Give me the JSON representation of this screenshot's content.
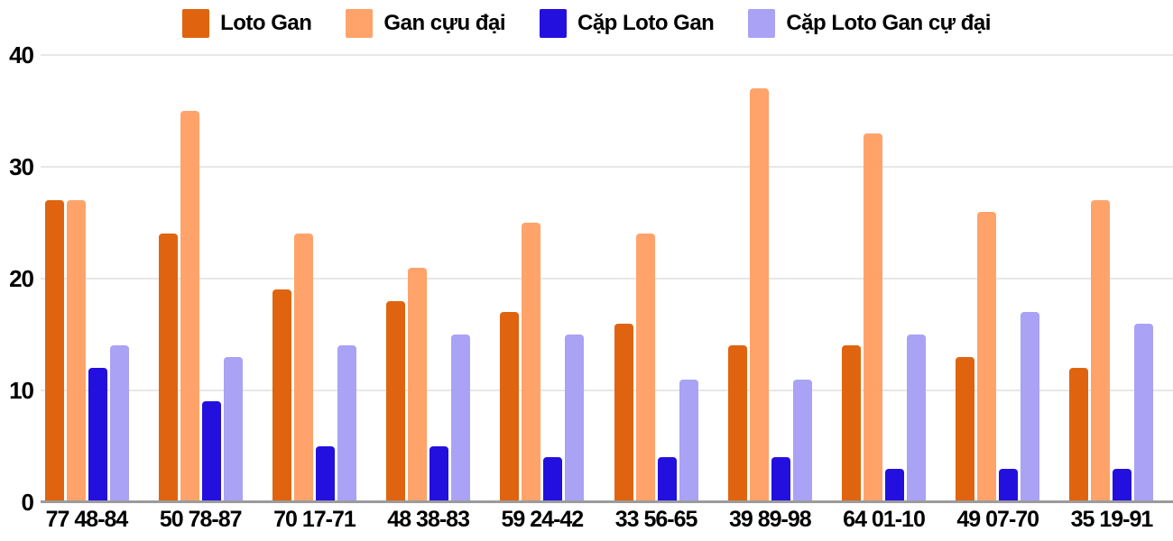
{
  "chart_data": {
    "type": "bar",
    "categories": [
      "77 48-84",
      "50 78-87",
      "70 17-71",
      "48 38-83",
      "59 24-42",
      "33 56-65",
      "39 89-98",
      "64 01-10",
      "49 07-70",
      "35 19-91"
    ],
    "series": [
      {
        "name": "Loto Gan",
        "color": "#E0640F",
        "values": [
          27,
          24,
          19,
          18,
          17,
          16,
          14,
          14,
          13,
          12
        ]
      },
      {
        "name": "Gan cựu đại",
        "color": "#FFA36B",
        "values": [
          27,
          35,
          24,
          21,
          25,
          24,
          37,
          33,
          26,
          27
        ]
      },
      {
        "name": "Cặp Loto Gan",
        "color": "#2310DF",
        "values": [
          12,
          9,
          5,
          5,
          4,
          4,
          4,
          3,
          3,
          3
        ]
      },
      {
        "name": "Cặp Loto Gan cự đại",
        "color": "#A9A2F5",
        "values": [
          14,
          13,
          14,
          15,
          15,
          11,
          11,
          15,
          17,
          16
        ]
      }
    ],
    "title": "",
    "xlabel": "",
    "ylabel": "",
    "ylim": [
      0,
      40
    ],
    "yticks": [
      0,
      10,
      20,
      30,
      40
    ],
    "grid": true,
    "legend_position": "top"
  },
  "style": {
    "grid_color": "#E7E7E7",
    "axis_line_color": "#9B9B9B",
    "text_color": "#000000",
    "background": "#FFFFFF"
  }
}
